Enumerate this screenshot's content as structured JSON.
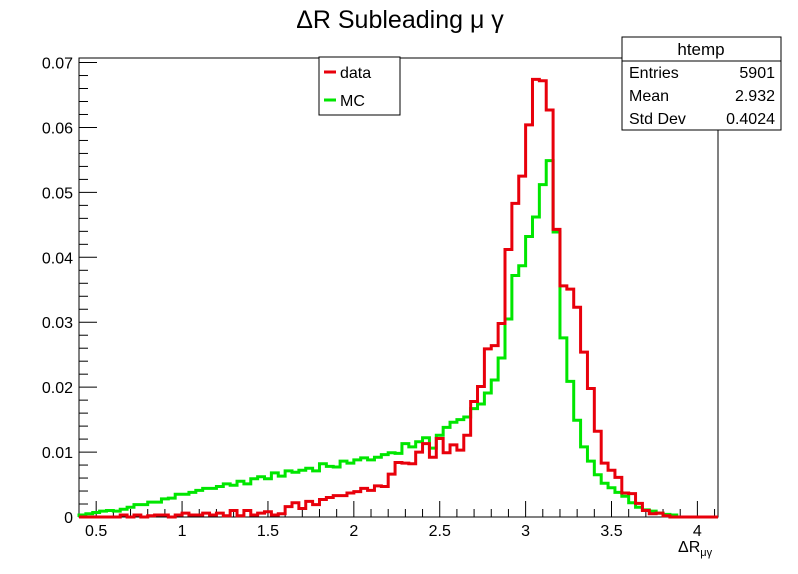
{
  "chart_data": {
    "type": "histogram",
    "title": "ΔR Subleading μ γ",
    "xlabel_main": "ΔR",
    "xlabel_sub": "μγ",
    "ylabel": "",
    "xlim": [
      0.4,
      4.12
    ],
    "ylim": [
      0,
      0.0707
    ],
    "bin_width": 0.04,
    "x_start": 0.4,
    "x_ticks": [
      "0.5",
      "1",
      "1.5",
      "2",
      "2.5",
      "3",
      "3.5",
      "4"
    ],
    "y_ticks": [
      "0",
      "0.01",
      "0.02",
      "0.03",
      "0.04",
      "0.05",
      "0.06",
      "0.07"
    ],
    "legend": {
      "entries": [
        {
          "label": "data",
          "color": "#e8000b"
        },
        {
          "label": "MC",
          "color": "#00e600"
        }
      ]
    },
    "stats_box": {
      "title": "htemp",
      "rows": [
        {
          "label": "Entries",
          "value": "5901"
        },
        {
          "label": "Mean",
          "value": "2.932"
        },
        {
          "label": "Std Dev",
          "value": "0.4024"
        }
      ]
    },
    "series": [
      {
        "name": "data",
        "color": "#e8000b",
        "values": [
          0,
          0,
          0,
          0,
          0,
          0,
          0.0003,
          0,
          0.0003,
          0,
          0.0002,
          0.0003,
          0.0003,
          0,
          0.0003,
          0.0006,
          0.0003,
          0.0003,
          0.0006,
          0.0003,
          0.0006,
          0.0002,
          0.001,
          0.0002,
          0.001,
          0.0003,
          0.0006,
          0.0008,
          0.0003,
          0.0005,
          0.0016,
          0.0022,
          0.0013,
          0.0024,
          0.0019,
          0.0027,
          0.003,
          0.0033,
          0.0033,
          0.0037,
          0.0039,
          0.0044,
          0.0041,
          0.0048,
          0.0047,
          0.0066,
          0.0084,
          0.0083,
          0.0082,
          0.01,
          0.0113,
          0.0092,
          0.0121,
          0.0099,
          0.0111,
          0.0103,
          0.0126,
          0.0178,
          0.0201,
          0.0259,
          0.0264,
          0.0298,
          0.0412,
          0.0483,
          0.0525,
          0.0604,
          0.0674,
          0.0672,
          0.0627,
          0.0443,
          0.0356,
          0.0351,
          0.0323,
          0.0254,
          0.0198,
          0.0132,
          0.0083,
          0.0072,
          0.0061,
          0.0037,
          0.0036,
          0.0021,
          0.001,
          0.0005,
          0.0006,
          0.0002,
          0,
          0,
          0,
          0,
          0,
          0,
          0
        ]
      },
      {
        "name": "MC",
        "color": "#00e600",
        "values": [
          0.0003,
          0.0005,
          0.0007,
          0.0009,
          0.001,
          0.0009,
          0.0012,
          0.0015,
          0.0019,
          0.0019,
          0.0023,
          0.0023,
          0.0028,
          0.0029,
          0.0035,
          0.0035,
          0.0038,
          0.0041,
          0.0044,
          0.0044,
          0.0047,
          0.0051,
          0.0049,
          0.0055,
          0.0051,
          0.0059,
          0.0062,
          0.0059,
          0.0068,
          0.0063,
          0.0071,
          0.0069,
          0.0072,
          0.0075,
          0.0071,
          0.0082,
          0.0078,
          0.0077,
          0.0086,
          0.0083,
          0.0088,
          0.0091,
          0.0088,
          0.0092,
          0.0096,
          0.0099,
          0.0098,
          0.0113,
          0.0108,
          0.0116,
          0.0122,
          0.0106,
          0.0126,
          0.0138,
          0.0146,
          0.015,
          0.0154,
          0.0167,
          0.0174,
          0.0191,
          0.0211,
          0.0245,
          0.0305,
          0.0372,
          0.0387,
          0.0432,
          0.0462,
          0.0512,
          0.0549,
          0.0439,
          0.0276,
          0.0209,
          0.0149,
          0.0108,
          0.0086,
          0.0065,
          0.0052,
          0.0045,
          0.0038,
          0.0032,
          0.0022,
          0.0015,
          0.0011,
          0.0009,
          0.0006,
          0.0004,
          0.0003,
          0,
          0,
          0,
          0,
          0,
          0
        ]
      }
    ]
  }
}
